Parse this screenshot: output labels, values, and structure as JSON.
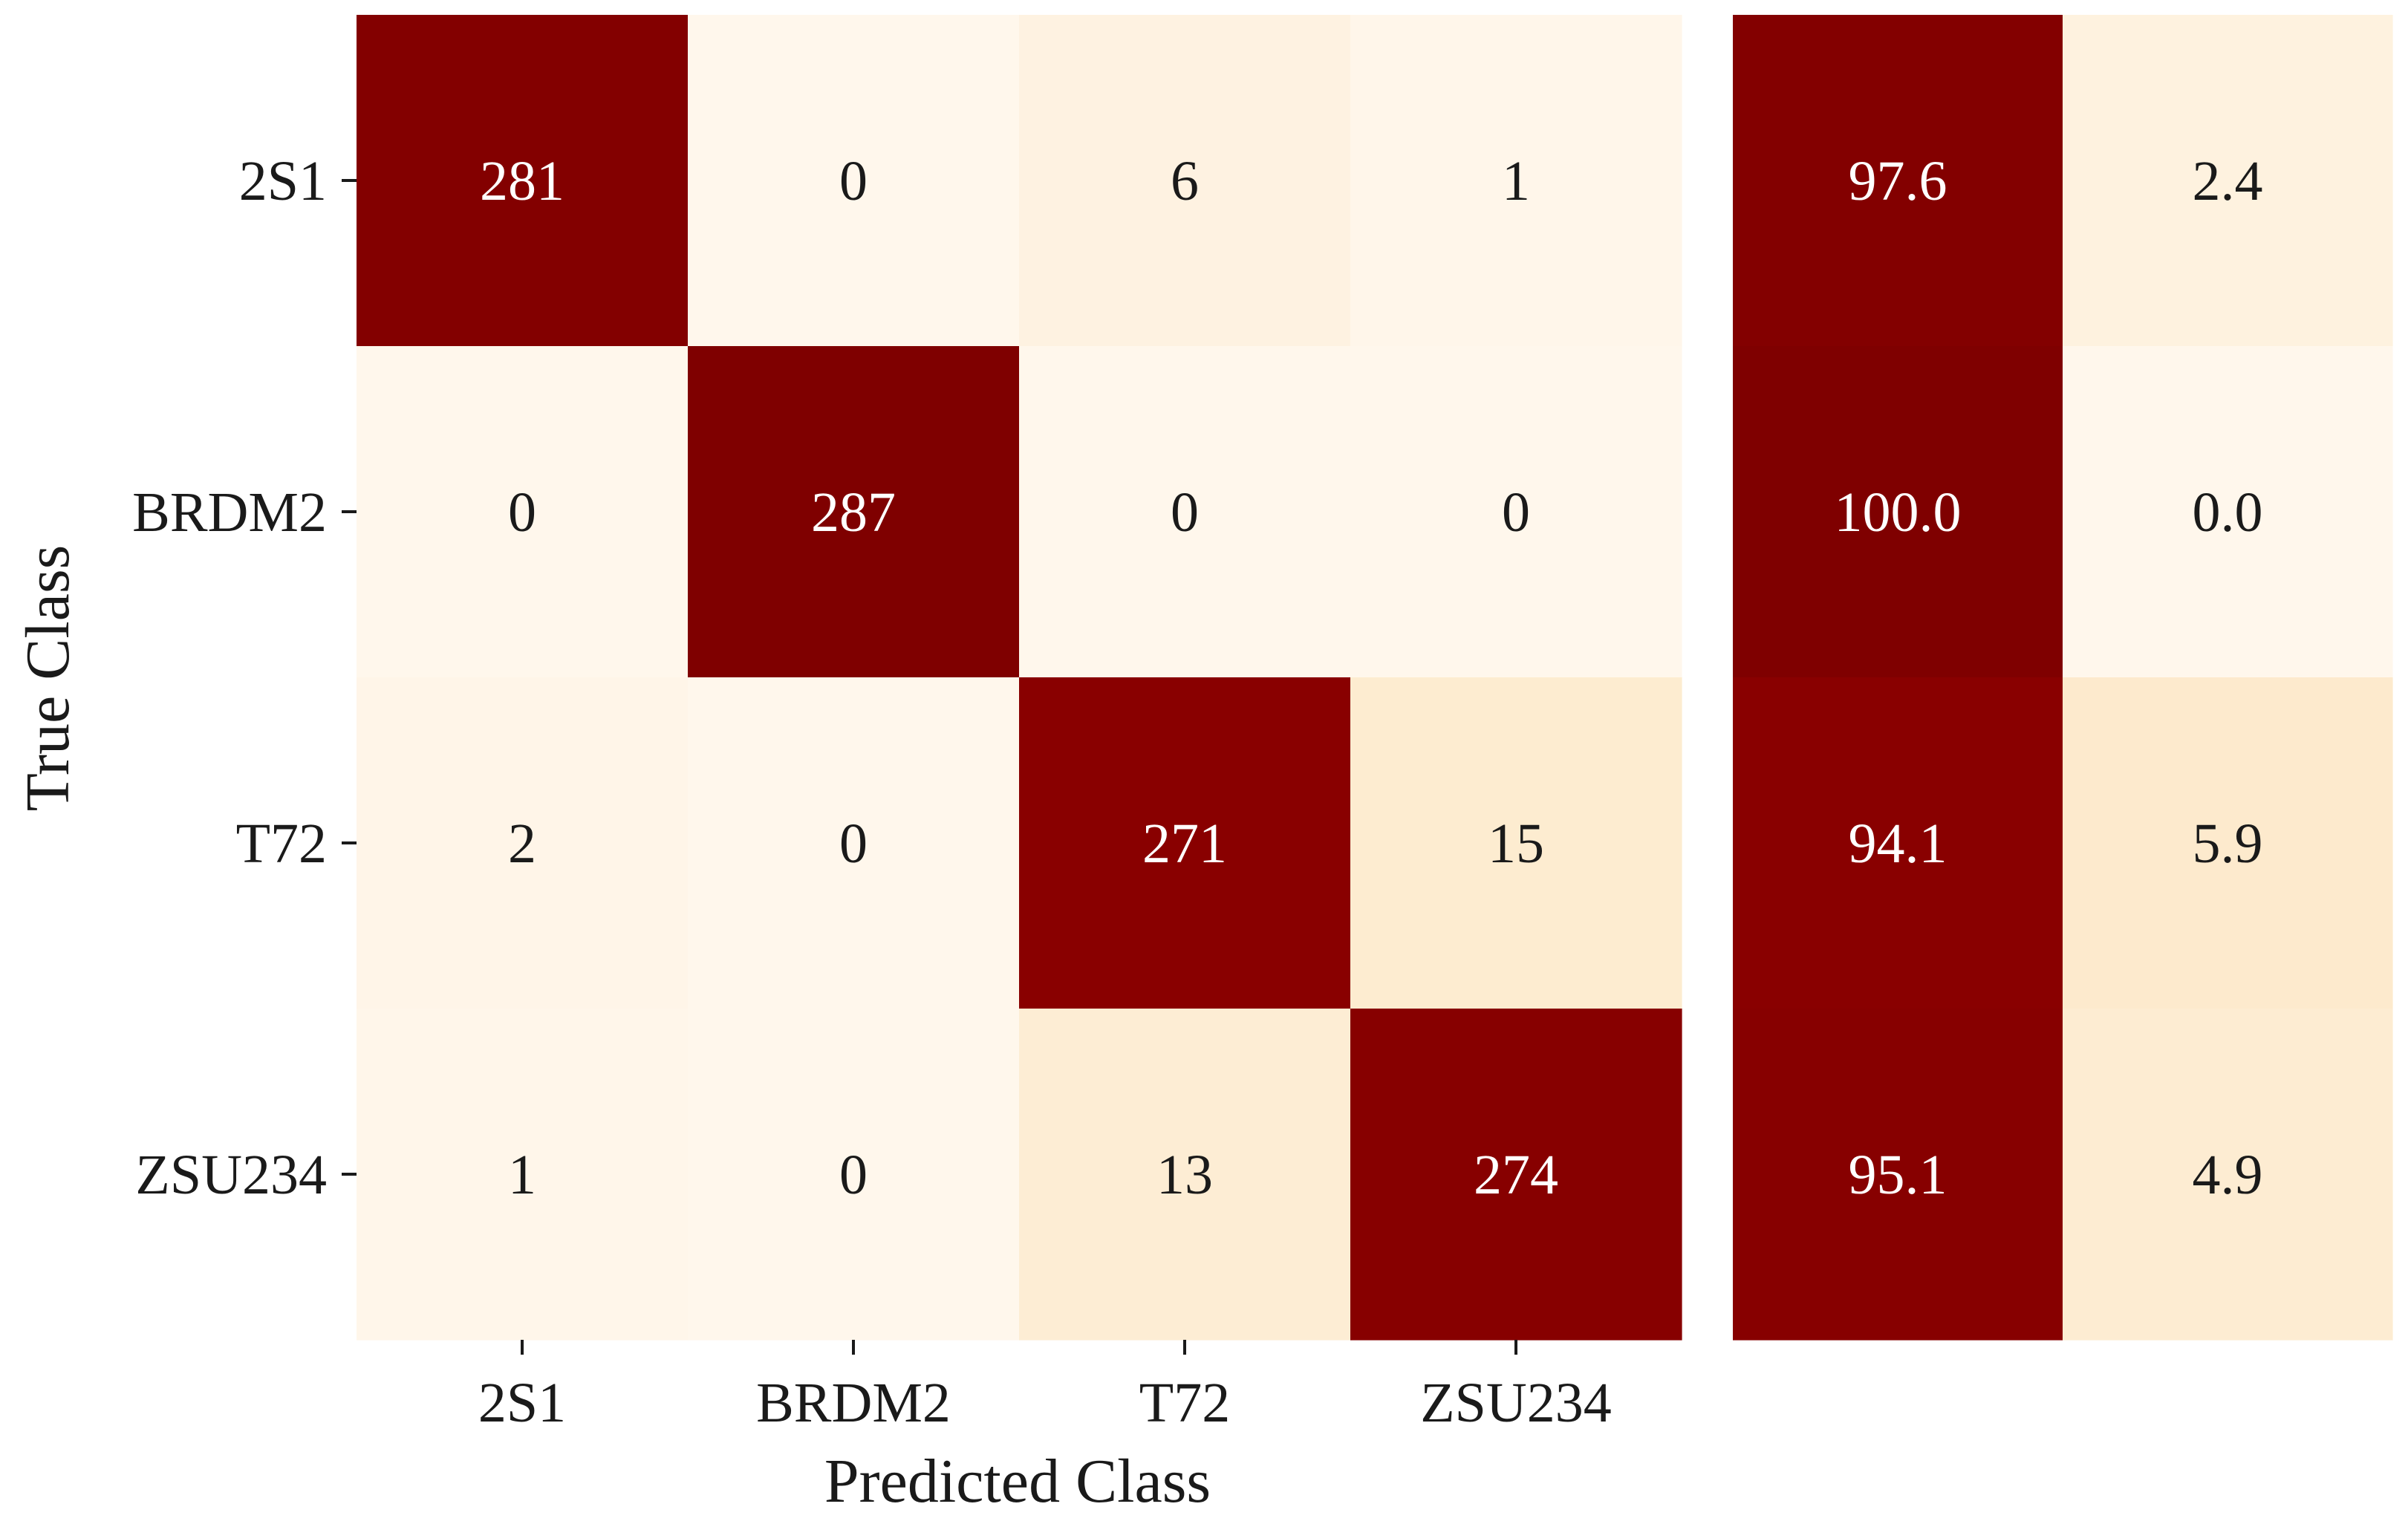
{
  "chart_data": [
    {
      "type": "heatmap",
      "title": "",
      "xlabel": "Predicted Class",
      "ylabel": "True Class",
      "x_categories": [
        "2S1",
        "BRDM2",
        "T72",
        "ZSU234"
      ],
      "y_categories": [
        "2S1",
        "BRDM2",
        "T72",
        "ZSU234"
      ],
      "values": [
        [
          281,
          0,
          6,
          1
        ],
        [
          0,
          287,
          0,
          0
        ],
        [
          2,
          0,
          271,
          15
        ],
        [
          1,
          0,
          13,
          274
        ]
      ],
      "value_labels": [
        [
          "281",
          "0",
          "6",
          "1"
        ],
        [
          "0",
          "287",
          "0",
          "0"
        ],
        [
          "2",
          "0",
          "271",
          "15"
        ],
        [
          "1",
          "0",
          "13",
          "274"
        ]
      ],
      "value_range": [
        0,
        287
      ],
      "colormap": "OrRd",
      "grid": false,
      "legend": "none"
    },
    {
      "type": "heatmap",
      "title": "",
      "xlabel": "",
      "ylabel": "",
      "columns": 2,
      "values": [
        [
          97.6,
          2.4
        ],
        [
          100.0,
          0.0
        ],
        [
          94.1,
          5.9
        ],
        [
          95.1,
          4.9
        ]
      ],
      "value_labels": [
        [
          "97.6",
          "2.4"
        ],
        [
          "100.0",
          "0.0"
        ],
        [
          "94.1",
          "5.9"
        ],
        [
          "95.1",
          "4.9"
        ]
      ],
      "value_range": [
        0,
        100
      ],
      "colormap": "OrRd",
      "grid": false,
      "legend": "none"
    }
  ],
  "colors": {
    "low": "#fff7ec",
    "light": "#fdeacc",
    "mid": "#fc8d59",
    "dark": "#990000",
    "max": "#7f0000",
    "text_on_dark": "#ffffff",
    "text_on_light": "#1a1a1a"
  }
}
